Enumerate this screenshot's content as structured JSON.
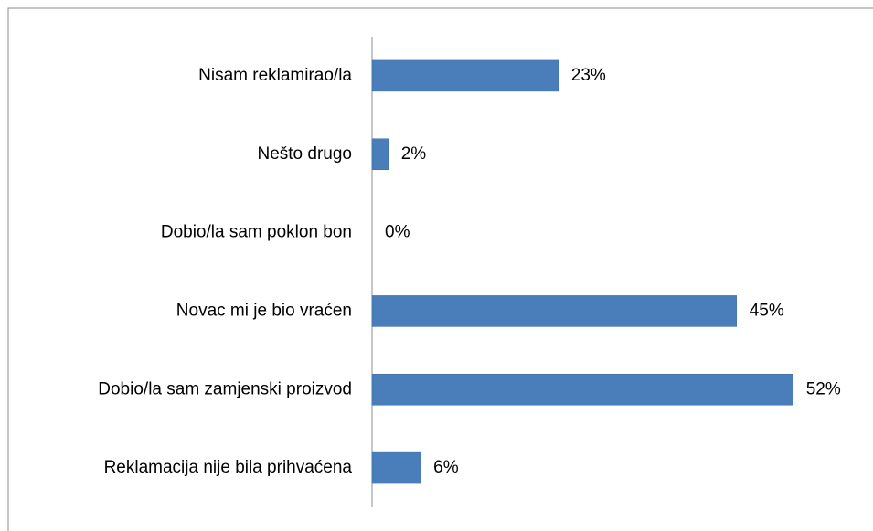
{
  "chart_data": {
    "type": "bar",
    "orientation": "horizontal",
    "categories": [
      "Nisam reklamirao/la",
      "Nešto drugo",
      "Dobio/la sam poklon bon",
      "Novac mi je bio vraćen",
      "Dobio/la sam zamjenski proizvod",
      "Reklamacija nije bila prihvaćena"
    ],
    "values": [
      23,
      2,
      0,
      45,
      52,
      6
    ],
    "value_labels": [
      "23%",
      "2%",
      "0%",
      "45%",
      "52%",
      "6%"
    ],
    "color": "#4a7ebb"
  }
}
